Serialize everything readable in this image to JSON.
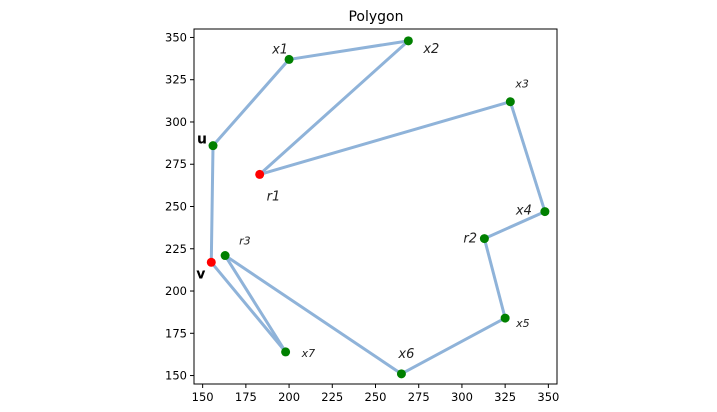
{
  "chart_data": {
    "type": "line",
    "title": "Polygon",
    "xlabel": "",
    "ylabel": "",
    "xlim": [
      145,
      355
    ],
    "ylim": [
      145,
      355
    ],
    "xticks": [
      150,
      175,
      200,
      225,
      250,
      275,
      300,
      325,
      350
    ],
    "yticks": [
      150,
      175,
      200,
      225,
      250,
      275,
      300,
      325,
      350
    ],
    "grid": false,
    "line_color": "#8fb3d9",
    "vertex_color_default": "#008000",
    "vertex_color_highlight": "#ff0000",
    "points": [
      {
        "name": "u",
        "x": 156,
        "y": 286,
        "color": "green",
        "label_style": "bold"
      },
      {
        "name": "x1",
        "x": 200,
        "y": 337,
        "color": "green",
        "label_style": "italic"
      },
      {
        "name": "x2",
        "x": 269,
        "y": 348,
        "color": "green",
        "label_style": "italic"
      },
      {
        "name": "r1",
        "x": 183,
        "y": 269,
        "color": "red",
        "label_style": "italic"
      },
      {
        "name": "x3",
        "x": 328,
        "y": 312,
        "color": "green",
        "label_style": "italic-small"
      },
      {
        "name": "x4",
        "x": 348,
        "y": 247,
        "color": "green",
        "label_style": "italic"
      },
      {
        "name": "r2",
        "x": 313,
        "y": 231,
        "color": "green",
        "label_style": "italic"
      },
      {
        "name": "x5",
        "x": 325,
        "y": 184,
        "color": "green",
        "label_style": "italic-small"
      },
      {
        "name": "x6",
        "x": 265,
        "y": 151,
        "color": "green",
        "label_style": "italic"
      },
      {
        "name": "r3",
        "x": 163,
        "y": 221,
        "color": "green",
        "label_style": "italic-small"
      },
      {
        "name": "x7",
        "x": 198,
        "y": 164,
        "color": "green",
        "label_style": "italic-small"
      },
      {
        "name": "v",
        "x": 155,
        "y": 217,
        "color": "red",
        "label_style": "bold"
      }
    ],
    "edges": [
      [
        "u",
        "x1"
      ],
      [
        "x1",
        "x2"
      ],
      [
        "x2",
        "r1"
      ],
      [
        "r1",
        "x3"
      ],
      [
        "x3",
        "x4"
      ],
      [
        "x4",
        "r2"
      ],
      [
        "r2",
        "x5"
      ],
      [
        "x5",
        "x6"
      ],
      [
        "x6",
        "r3"
      ],
      [
        "r3",
        "x7"
      ],
      [
        "x7",
        "v"
      ],
      [
        "v",
        "u"
      ]
    ]
  }
}
